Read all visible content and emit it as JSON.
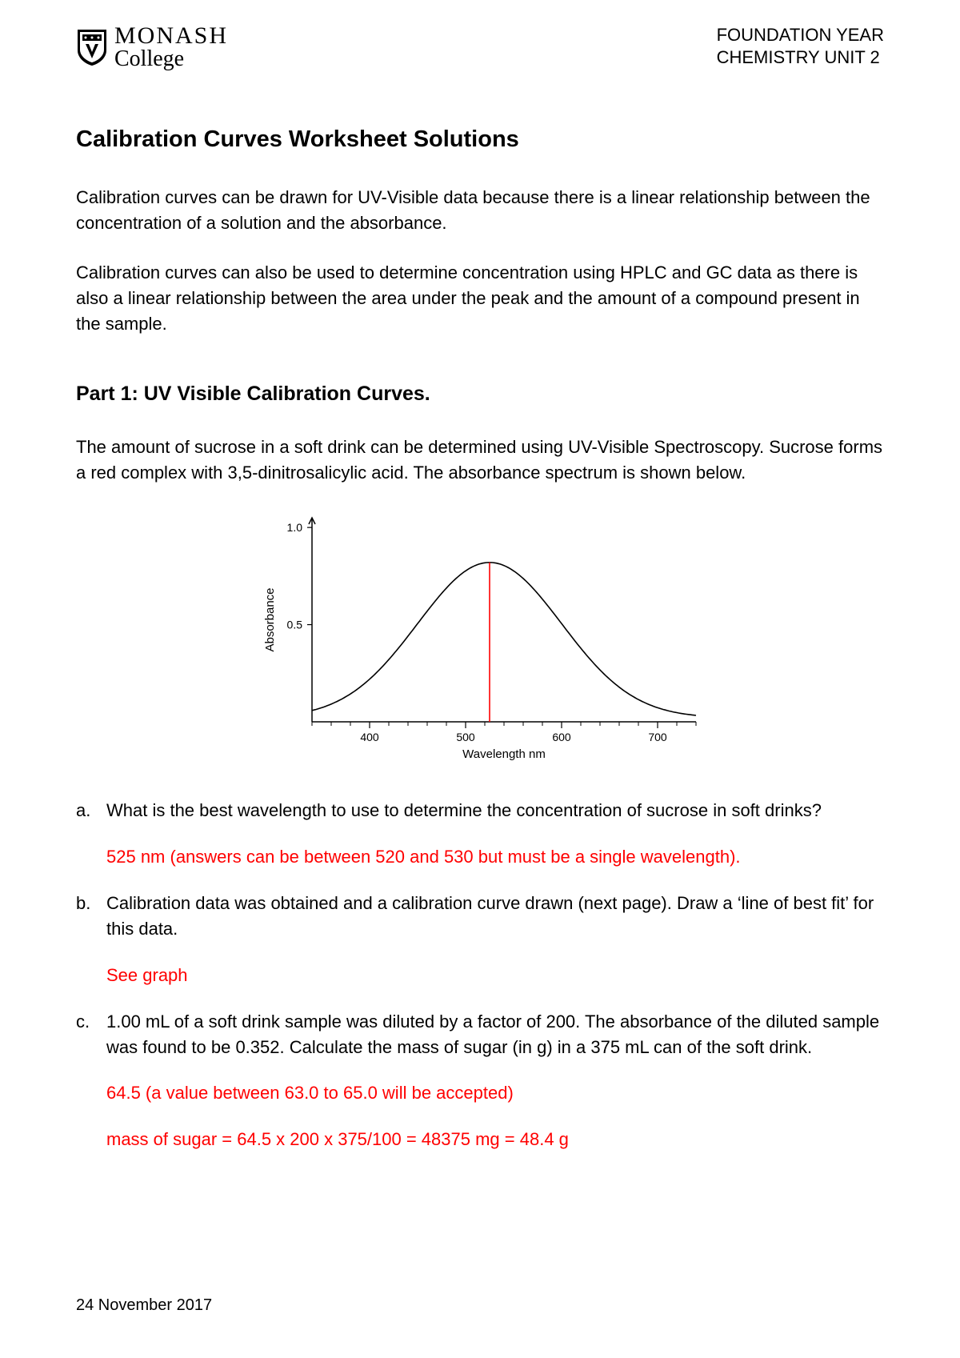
{
  "header": {
    "logo_top": "MONASH",
    "logo_bottom": "College",
    "right_line1": "FOUNDATION YEAR",
    "right_line2": "CHEMISTRY UNIT 2"
  },
  "title": "Calibration Curves Worksheet Solutions",
  "intro_p1": "Calibration curves can be drawn for UV-Visible data because there is a linear relationship between the concentration of a solution and the absorbance.",
  "intro_p2": "Calibration curves can also be used to determine concentration using HPLC and GC data as there is also a linear relationship between the area under the peak and the amount of a compound present in the sample.",
  "part1": {
    "heading": "Part 1: UV Visible Calibration Curves.",
    "intro": "The amount of sucrose in a soft drink can be determined using UV-Visible Spectroscopy.  Sucrose forms a red complex with 3,5-dinitrosalicylic acid.  The absorbance spectrum is shown below."
  },
  "chart": {
    "type": "line",
    "xlabel": "Wavelength nm",
    "ylabel": "Absorbance",
    "xlabel_fontsize": 15,
    "ylabel_fontsize": 15,
    "tick_fontsize": 14,
    "x_ticks": [
      400,
      500,
      600,
      700
    ],
    "x_minor_step": 20,
    "xlim": [
      340,
      740
    ],
    "y_ticks": [
      0.5,
      1.0
    ],
    "ylim": [
      0,
      1.05
    ],
    "curve_color": "#000000",
    "marker_line_color": "#ff0000",
    "marker_x": 525,
    "axis_color": "#000000",
    "background_color": "#ffffff",
    "curve": {
      "comment": "approx gaussian peak",
      "peak_x": 525,
      "peak_y": 0.82,
      "sigma": 75,
      "baseline": 0.02
    }
  },
  "questions": [
    {
      "marker": "a.",
      "text": "What is the best wavelength to use to determine the concentration of sucrose in soft drinks?",
      "answers": [
        "525 nm (answers can be between 520 and 530 but must be a single wavelength)."
      ]
    },
    {
      "marker": "b.",
      "text": "Calibration data was obtained and a calibration curve drawn (next page).  Draw a ‘line of best fit’ for this data.",
      "answers": [
        "See graph"
      ]
    },
    {
      "marker": "c.",
      "text": "1.00 mL of a soft drink sample was diluted by a factor of 200. The absorbance of the diluted sample was found to be 0.352.  Calculate the mass of sugar (in g) in a 375 mL can of the soft drink.",
      "answers": [
        "64.5 (a value between 63.0 to 65.0 will be accepted)",
        "mass of sugar = 64.5 x 200 x 375/100 = 48375 mg = 48.4 g"
      ]
    }
  ],
  "footer_date": "24 November 2017",
  "colors": {
    "text": "#000000",
    "answer": "#ff0000",
    "background": "#ffffff"
  }
}
